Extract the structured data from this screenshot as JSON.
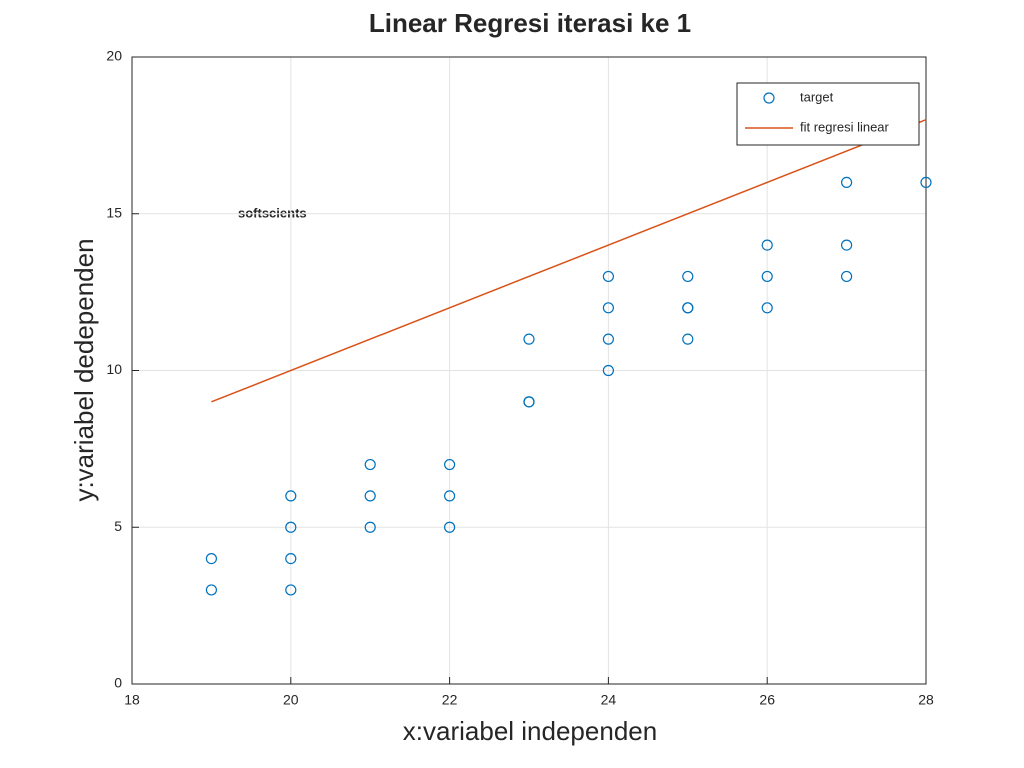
{
  "chart_data": {
    "type": "scatter",
    "title": "Linear Regresi iterasi ke 1",
    "x_label": "x:variabel independen",
    "y_label": "y:variabel dedependen",
    "annotation": "softscients",
    "xlim": [
      18,
      28
    ],
    "xticks": [
      18,
      20,
      22,
      24,
      26,
      28
    ],
    "ylim": [
      0,
      20
    ],
    "yticks": [
      0,
      5,
      10,
      15,
      20
    ],
    "grid": true,
    "legend_position": "top-right",
    "series": [
      {
        "name": "target",
        "type": "scatter",
        "color": "#0072bd",
        "x": [
          19,
          19,
          20,
          20,
          20,
          20,
          21,
          21,
          21,
          22,
          22,
          22,
          23,
          23,
          23,
          24,
          24,
          24,
          24,
          25,
          25,
          25,
          25,
          26,
          26,
          26,
          27,
          27,
          27,
          28
        ],
        "values": [
          4,
          3,
          6,
          5,
          4,
          3,
          7,
          6,
          5,
          7,
          6,
          5,
          11,
          9,
          9,
          13,
          12,
          11,
          10,
          13,
          12,
          12,
          11,
          14,
          13,
          12,
          16,
          14,
          13,
          16
        ]
      },
      {
        "name": "fit regresi linear",
        "type": "line",
        "color": "#d95319",
        "x": [
          19,
          28
        ],
        "values": [
          9,
          18
        ]
      }
    ]
  }
}
